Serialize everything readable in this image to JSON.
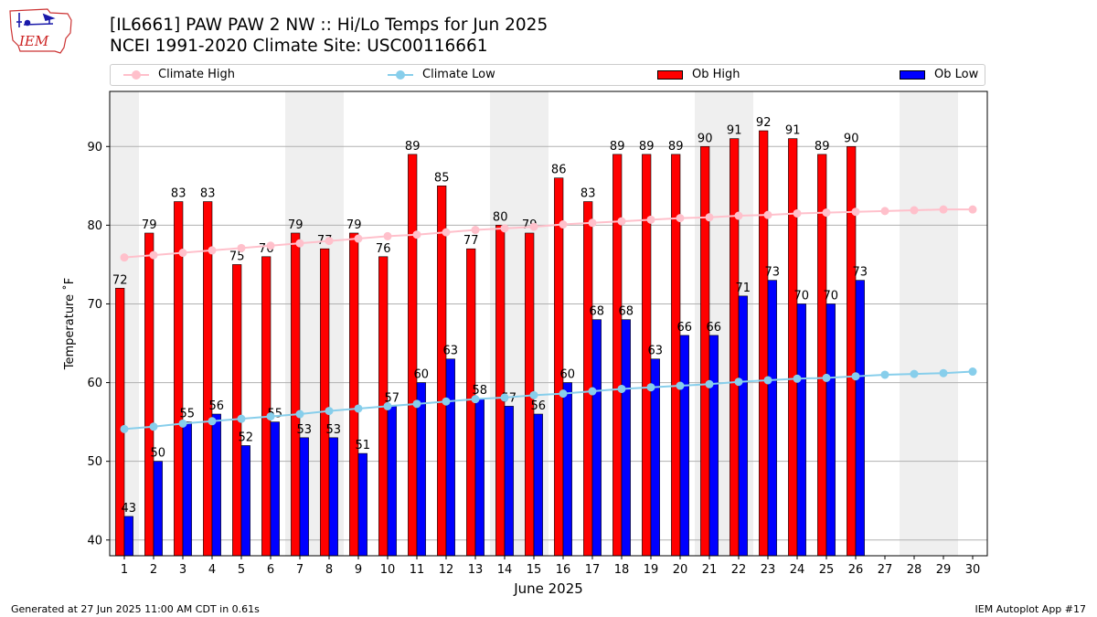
{
  "header": {
    "title_line1": "[IL6661] PAW PAW 2 NW :: Hi/Lo Temps for Jun 2025",
    "title_line2": "NCEI 1991-2020 Climate Site: USC00116661"
  },
  "logo": {
    "text": "IEM",
    "color": "#cc2222"
  },
  "footer": {
    "generated": "Generated at 27 Jun 2025 11:00 AM CDT in 0.61s",
    "app": "IEM Autoplot App #17"
  },
  "chart_data": {
    "type": "bar",
    "xlabel": "June 2025",
    "ylabel": "Temperature ˚F",
    "ylim": [
      38,
      97
    ],
    "xlim": [
      0.5,
      30.5
    ],
    "yticks": [
      40,
      50,
      60,
      70,
      80,
      90
    ],
    "grid": "horizontal",
    "legend_position": "top",
    "weekend_shading_days": [
      1,
      7,
      8,
      14,
      15,
      21,
      22,
      28,
      29
    ],
    "days": [
      1,
      2,
      3,
      4,
      5,
      6,
      7,
      8,
      9,
      10,
      11,
      12,
      13,
      14,
      15,
      16,
      17,
      18,
      19,
      20,
      21,
      22,
      23,
      24,
      25,
      26,
      27,
      28,
      29,
      30
    ],
    "series": [
      {
        "name": "Climate High",
        "kind": "line",
        "color": "#ffc0cb",
        "values": [
          75.9,
          76.2,
          76.5,
          76.8,
          77.1,
          77.4,
          77.7,
          78.0,
          78.3,
          78.6,
          78.8,
          79.1,
          79.4,
          79.6,
          79.8,
          80.1,
          80.3,
          80.5,
          80.7,
          80.9,
          81.0,
          81.2,
          81.3,
          81.5,
          81.6,
          81.7,
          81.8,
          81.9,
          82.0,
          82.0
        ]
      },
      {
        "name": "Climate Low",
        "kind": "line",
        "color": "#87ceeb",
        "values": [
          54.1,
          54.4,
          54.8,
          55.1,
          55.4,
          55.7,
          56.0,
          56.4,
          56.7,
          57.0,
          57.3,
          57.6,
          57.9,
          58.1,
          58.4,
          58.6,
          58.9,
          59.2,
          59.4,
          59.6,
          59.8,
          60.1,
          60.3,
          60.5,
          60.6,
          60.8,
          61.0,
          61.1,
          61.2,
          61.4
        ]
      },
      {
        "name": "Ob High",
        "kind": "bar",
        "color": "#ff0000",
        "values": [
          72,
          79,
          83,
          83,
          75,
          76,
          79,
          77,
          79,
          76,
          89,
          85,
          77,
          80,
          79,
          86,
          83,
          89,
          89,
          89,
          90,
          91,
          92,
          91,
          89,
          90
        ]
      },
      {
        "name": "Ob Low",
        "kind": "bar",
        "color": "#0000ff",
        "values": [
          43,
          50,
          55,
          56,
          52,
          55,
          53,
          53,
          51,
          57,
          60,
          63,
          58,
          57,
          56,
          60,
          68,
          68,
          63,
          66,
          66,
          71,
          73,
          70,
          70,
          73
        ]
      }
    ]
  }
}
